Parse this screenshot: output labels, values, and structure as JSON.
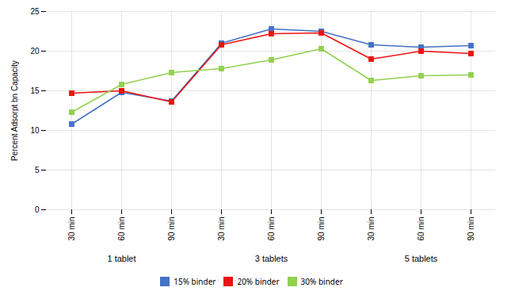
{
  "chart_data": {
    "type": "line",
    "categories": [
      "30 min",
      "60 min",
      "90 min",
      "30 min",
      "60 min",
      "90 min",
      "30 min",
      "60 min",
      "90 min"
    ],
    "group_labels": [
      "1 tablet",
      "3 tablets",
      "5 tablets"
    ],
    "series": [
      {
        "name": "15% binder",
        "color": "#4472C4",
        "marker": "square",
        "values": [
          10.8,
          14.8,
          13.7,
          21.0,
          22.8,
          22.5,
          20.8,
          20.5,
          20.7
        ]
      },
      {
        "name": "20% binder",
        "color": "#EE1111",
        "marker": "square",
        "values": [
          14.7,
          15.0,
          13.6,
          20.8,
          22.2,
          22.3,
          19.0,
          20.0,
          19.7
        ]
      },
      {
        "name": "30% binder",
        "color": "#92D050",
        "marker": "square",
        "values": [
          12.3,
          15.8,
          17.3,
          17.8,
          18.9,
          20.3,
          16.3,
          16.9,
          17.0
        ]
      }
    ],
    "y_label": "Percent Adsorpt bn Capacity",
    "ylim": [
      0,
      25
    ],
    "yticks": [
      0,
      5,
      10,
      15,
      20,
      25
    ],
    "grid": true,
    "legend": "bottom"
  }
}
